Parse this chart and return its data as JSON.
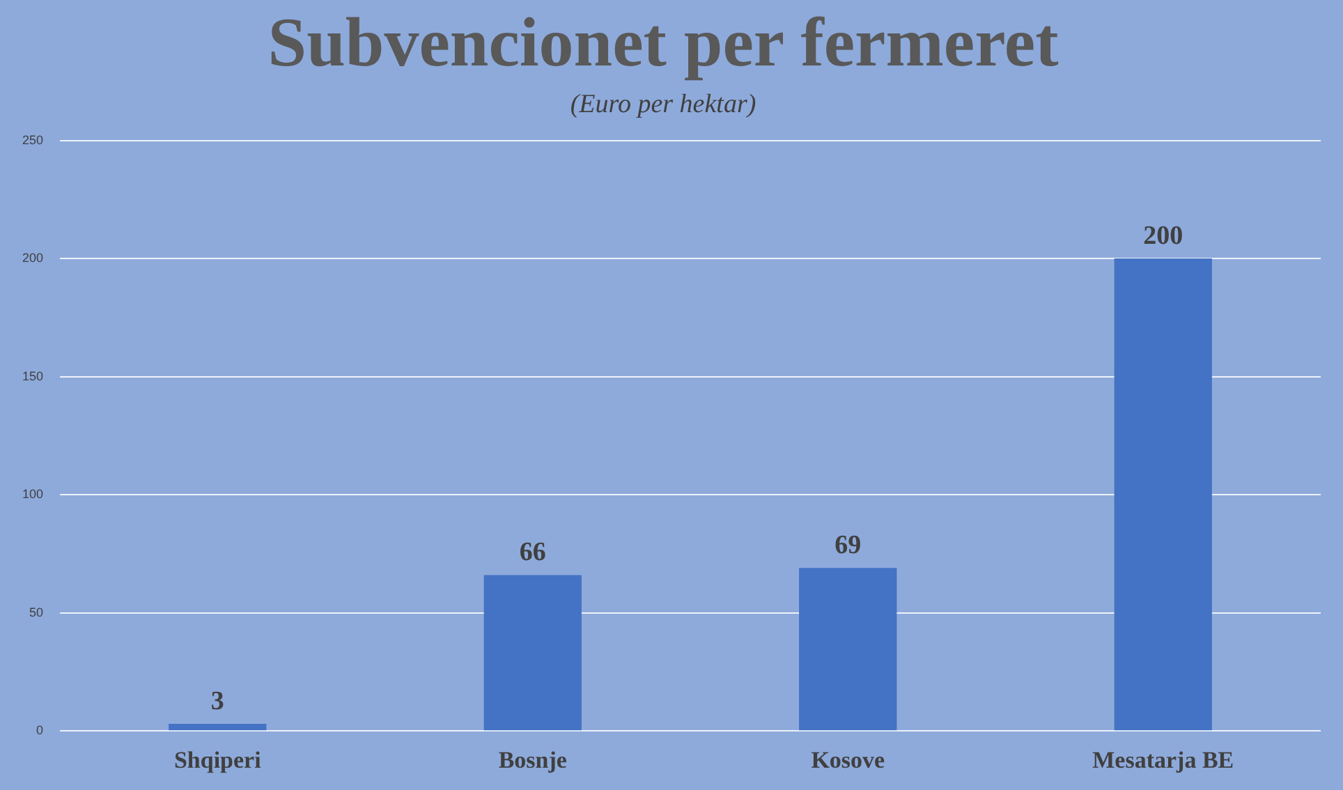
{
  "chart_data": {
    "type": "bar",
    "title": "Subvencionet per fermeret",
    "subtitle": "(Euro per hektar)",
    "categories": [
      "Shqiperi",
      "Bosnje",
      "Kosove",
      "Mesatarja BE"
    ],
    "values": [
      3,
      66,
      69,
      200
    ],
    "color": "#4472c4",
    "ylim": [
      0,
      250
    ],
    "yticks": [
      0,
      50,
      100,
      150,
      200,
      250
    ],
    "grid": "y",
    "data_labels": true,
    "legend": false
  }
}
